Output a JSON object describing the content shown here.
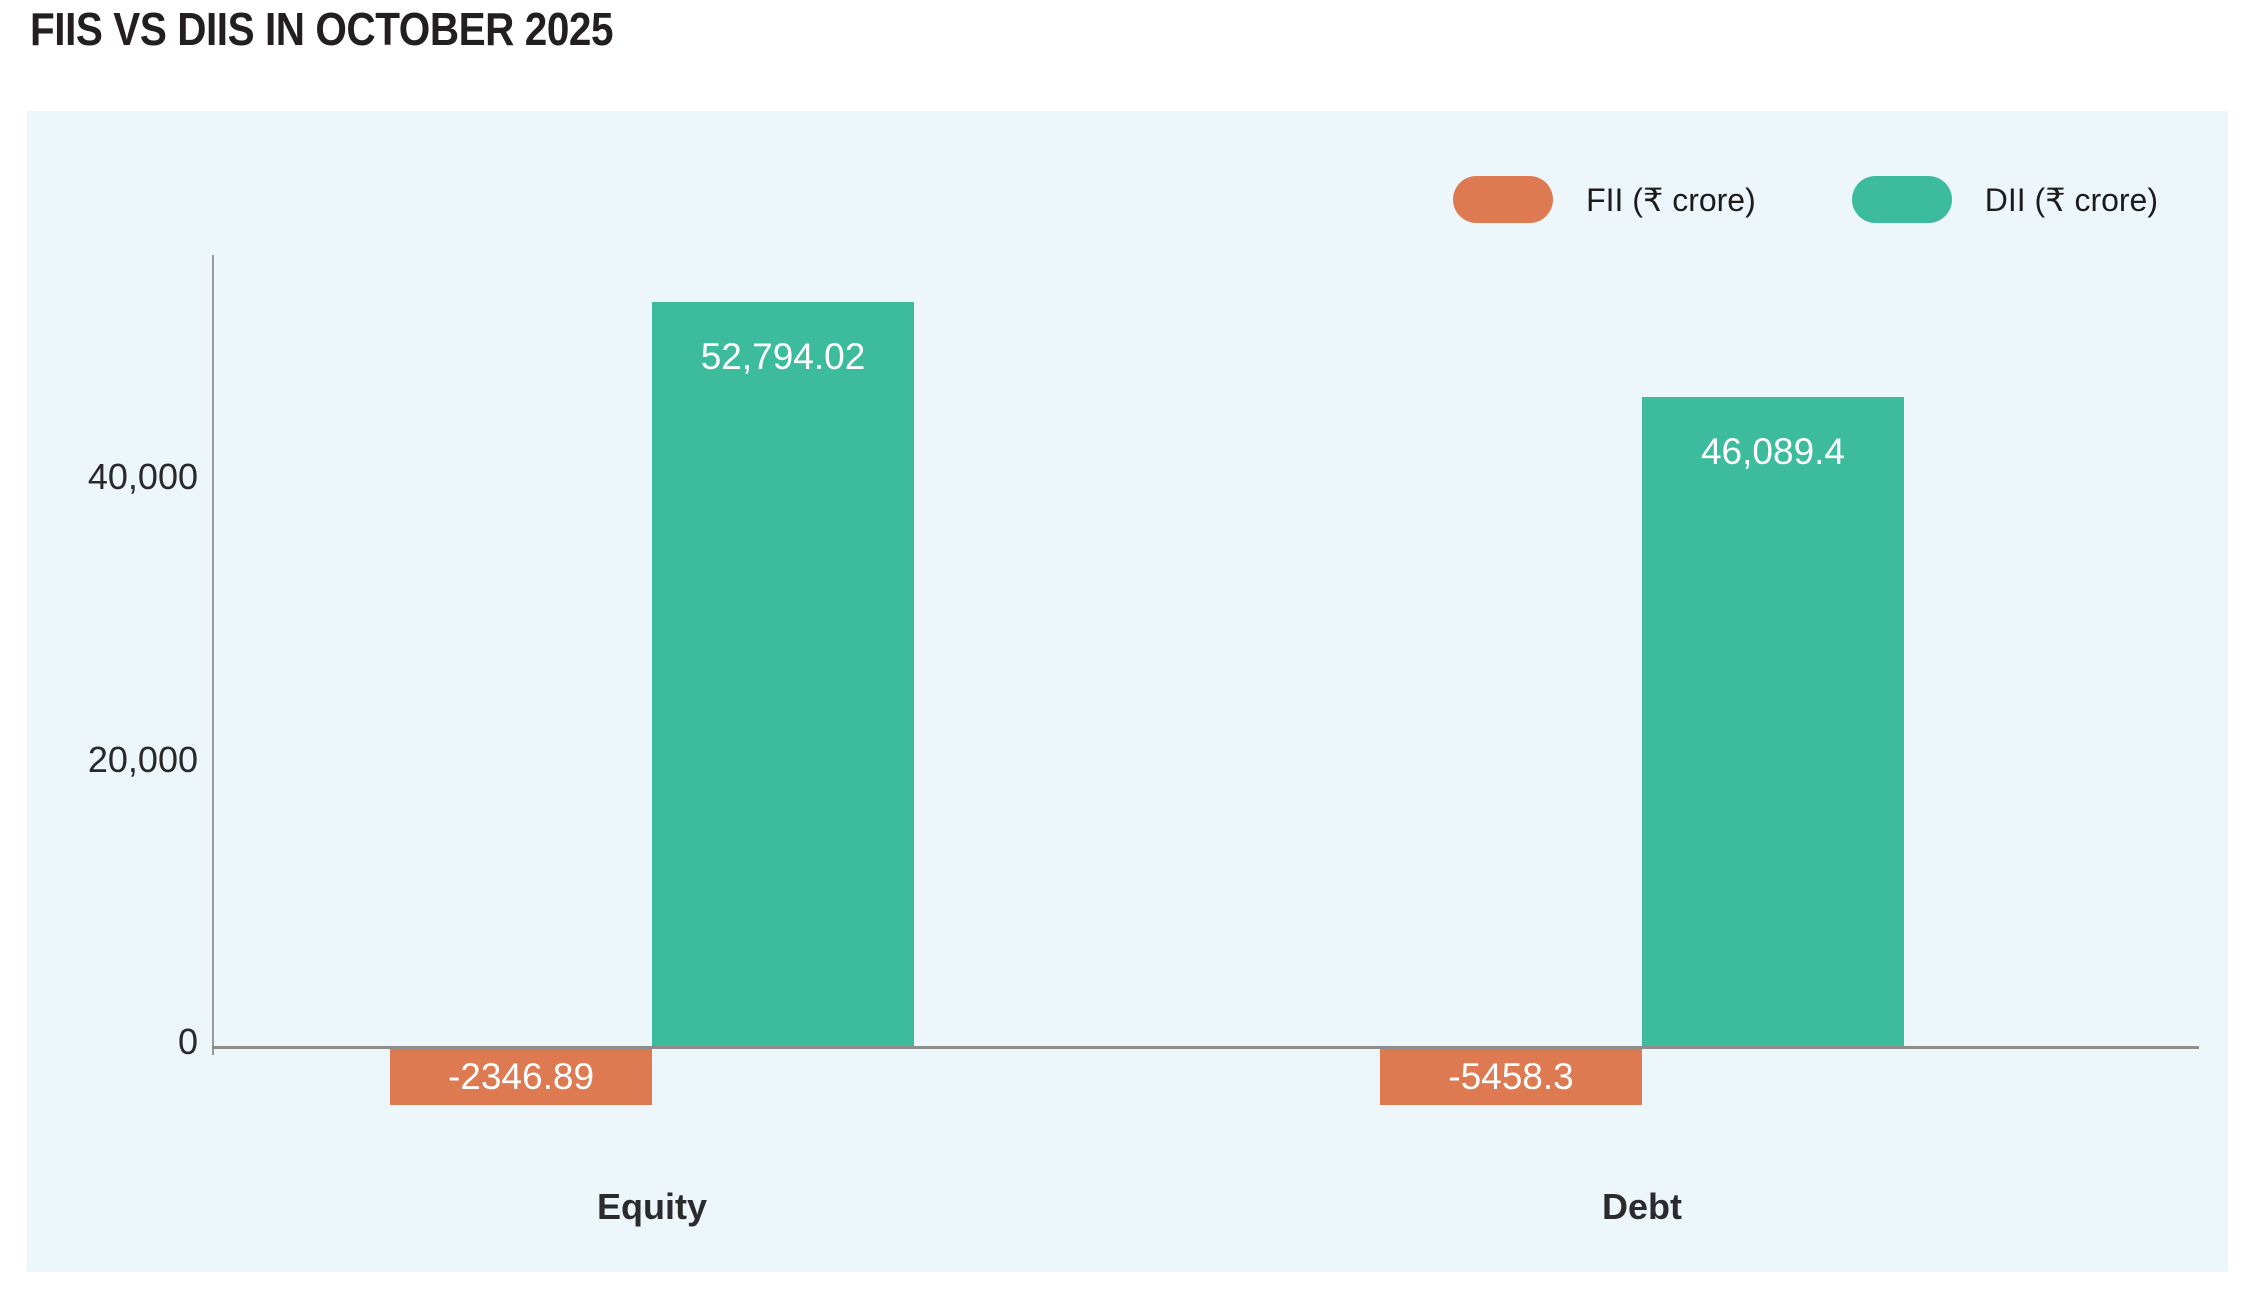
{
  "page_title": "FIIS VS DIIS IN OCTOBER 2025",
  "colors": {
    "fii_orange": "#DD7A52",
    "dii_teal": "#3DBC9D",
    "panel_background": "#EDF6FA",
    "axis_line": "#8D8D8D",
    "title_text": "#231F20",
    "bar_value_text": "#FFFFFF"
  },
  "chart_data": {
    "type": "bar",
    "title": "FIIS VS DIIS IN OCTOBER 2025",
    "categories": [
      "Equity",
      "Debt"
    ],
    "series": [
      {
        "name": "FII (₹ crore)",
        "color": "#DD7A52",
        "values": [
          -2346.89,
          -5458.3
        ],
        "value_labels": [
          "-2346.89",
          "-5458.3"
        ]
      },
      {
        "name": "DII (₹ crore)",
        "color": "#3DBC9D",
        "values": [
          52794.02,
          46089.4
        ],
        "value_labels": [
          "52,794.02",
          "46,089.4"
        ]
      }
    ],
    "y_axis": {
      "ticks": [
        0,
        20000,
        40000
      ],
      "tick_labels": [
        "0",
        "20,000",
        "40,000"
      ],
      "ylim": [
        -6500,
        57000
      ]
    },
    "grid": false,
    "legend_position": "top-right",
    "xlabel": "",
    "ylabel": ""
  }
}
